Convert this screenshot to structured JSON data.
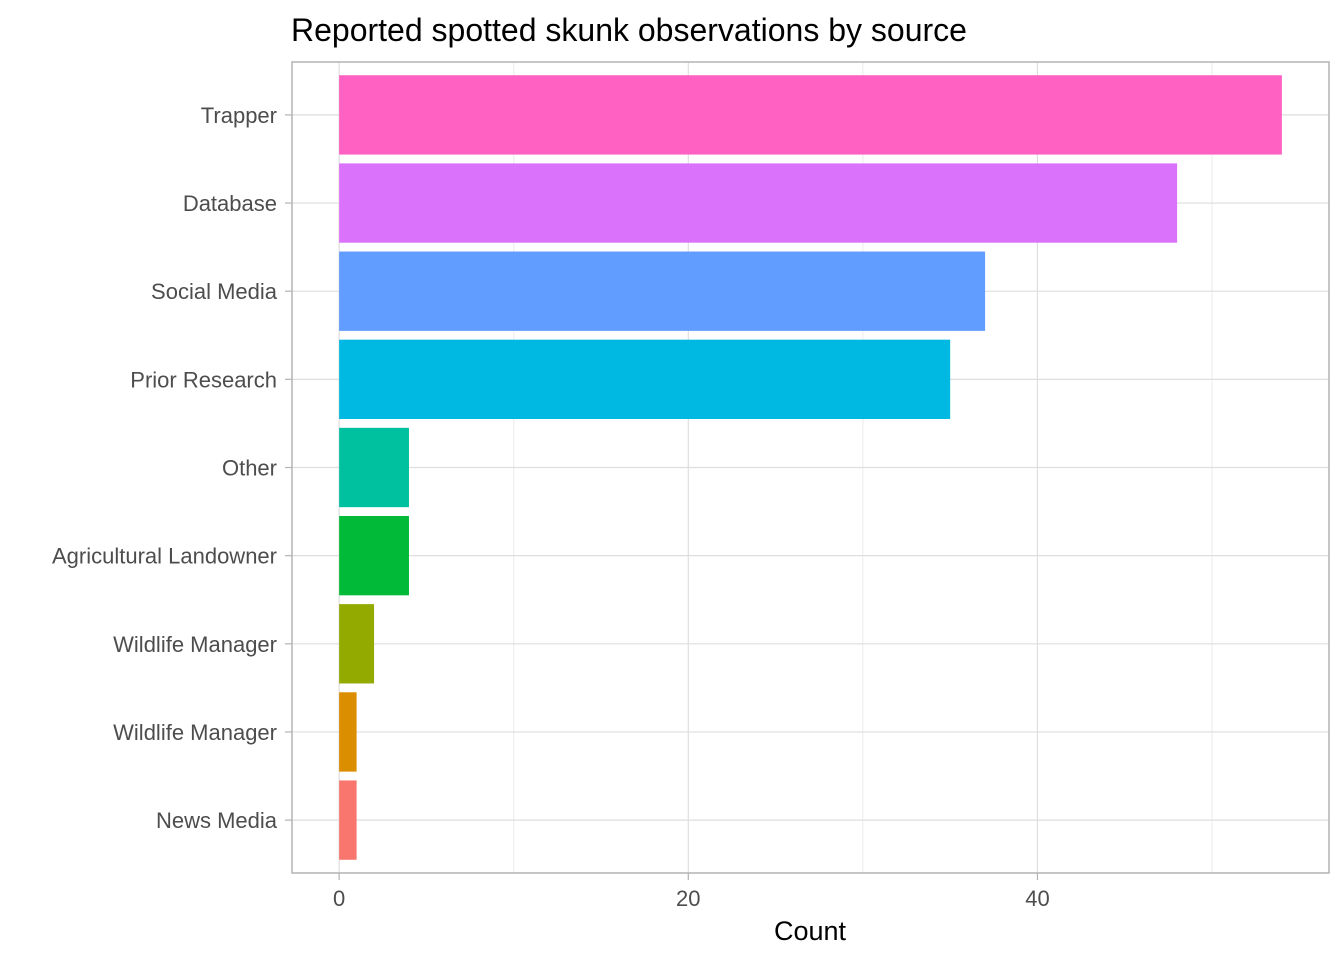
{
  "chart_data": {
    "type": "bar",
    "orientation": "horizontal",
    "title": "Reported spotted skunk observations by source",
    "xlabel": "Count",
    "ylabel": "",
    "xlim": [
      -2.7,
      56.7
    ],
    "x_ticks": [
      0,
      20,
      40
    ],
    "grid": true,
    "categories": [
      "News Media",
      "Wildlife Manager ",
      "Wildlife Manager",
      "Agricultural Landowner",
      "Other",
      "Prior Research",
      "Social Media",
      "Database",
      "Trapper"
    ],
    "values": [
      1,
      1,
      2,
      4,
      4,
      35,
      37,
      48,
      54
    ],
    "colors": [
      "#F8766D",
      "#DB8E00",
      "#93AA00",
      "#00BA38",
      "#00C19F",
      "#00B9E3",
      "#619CFF",
      "#DB72FB",
      "#FF61C3"
    ]
  }
}
